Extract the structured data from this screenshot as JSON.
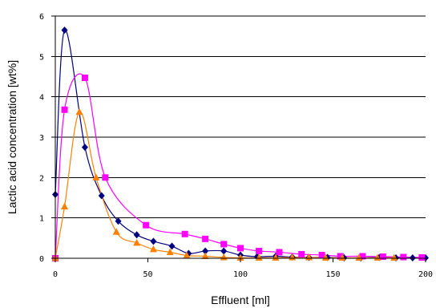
{
  "chart_data": {
    "type": "line",
    "title": "",
    "xlabel": "Effluent [ml]",
    "ylabel": "Lactic acid concentration [wt%]",
    "xlim": [
      0,
      200
    ],
    "ylim": [
      0,
      6
    ],
    "x_ticks": [
      "0",
      "50",
      "100",
      "150",
      "200"
    ],
    "y_ticks": [
      "0",
      "1",
      "2",
      "3",
      "4",
      "5",
      "6"
    ],
    "grid": "horizontal",
    "legend": "none",
    "series": [
      {
        "color": "#000080",
        "marker": "diamond",
        "x": [
          0,
          5,
          16,
          25,
          34,
          44,
          53,
          63,
          72,
          81,
          91,
          100,
          109,
          119,
          128,
          137,
          147,
          156,
          165,
          175,
          184,
          193,
          200
        ],
        "y": [
          1.58,
          5.65,
          2.75,
          1.55,
          0.92,
          0.58,
          0.42,
          0.3,
          0.12,
          0.18,
          0.18,
          0.08,
          0.04,
          0.05,
          0.03,
          0.02,
          0.02,
          0.01,
          0.01,
          0.02,
          0.01,
          0.01,
          0.01
        ]
      },
      {
        "color": "#ff00ff",
        "marker": "square",
        "x": [
          0,
          5,
          16,
          27,
          49,
          70,
          81,
          91,
          100,
          110,
          121,
          133,
          144,
          154,
          166,
          177,
          188,
          198
        ],
        "y": [
          0.0,
          3.68,
          4.47,
          2.0,
          0.82,
          0.6,
          0.48,
          0.35,
          0.25,
          0.18,
          0.15,
          0.1,
          0.08,
          0.05,
          0.05,
          0.04,
          0.03,
          0.02
        ]
      },
      {
        "color": "#ff8000",
        "marker": "triangle",
        "x": [
          0,
          5,
          13,
          22,
          33,
          44,
          53,
          62,
          71,
          81,
          91,
          100,
          110,
          119,
          128,
          137,
          146,
          155,
          164,
          174,
          183
        ],
        "y": [
          0.0,
          1.28,
          3.62,
          2.0,
          0.65,
          0.38,
          0.22,
          0.15,
          0.07,
          0.05,
          0.02,
          0.01,
          0.01,
          0.01,
          0.02,
          0.02,
          0.01,
          0.01,
          0.01,
          0.01,
          0.01
        ]
      }
    ]
  }
}
